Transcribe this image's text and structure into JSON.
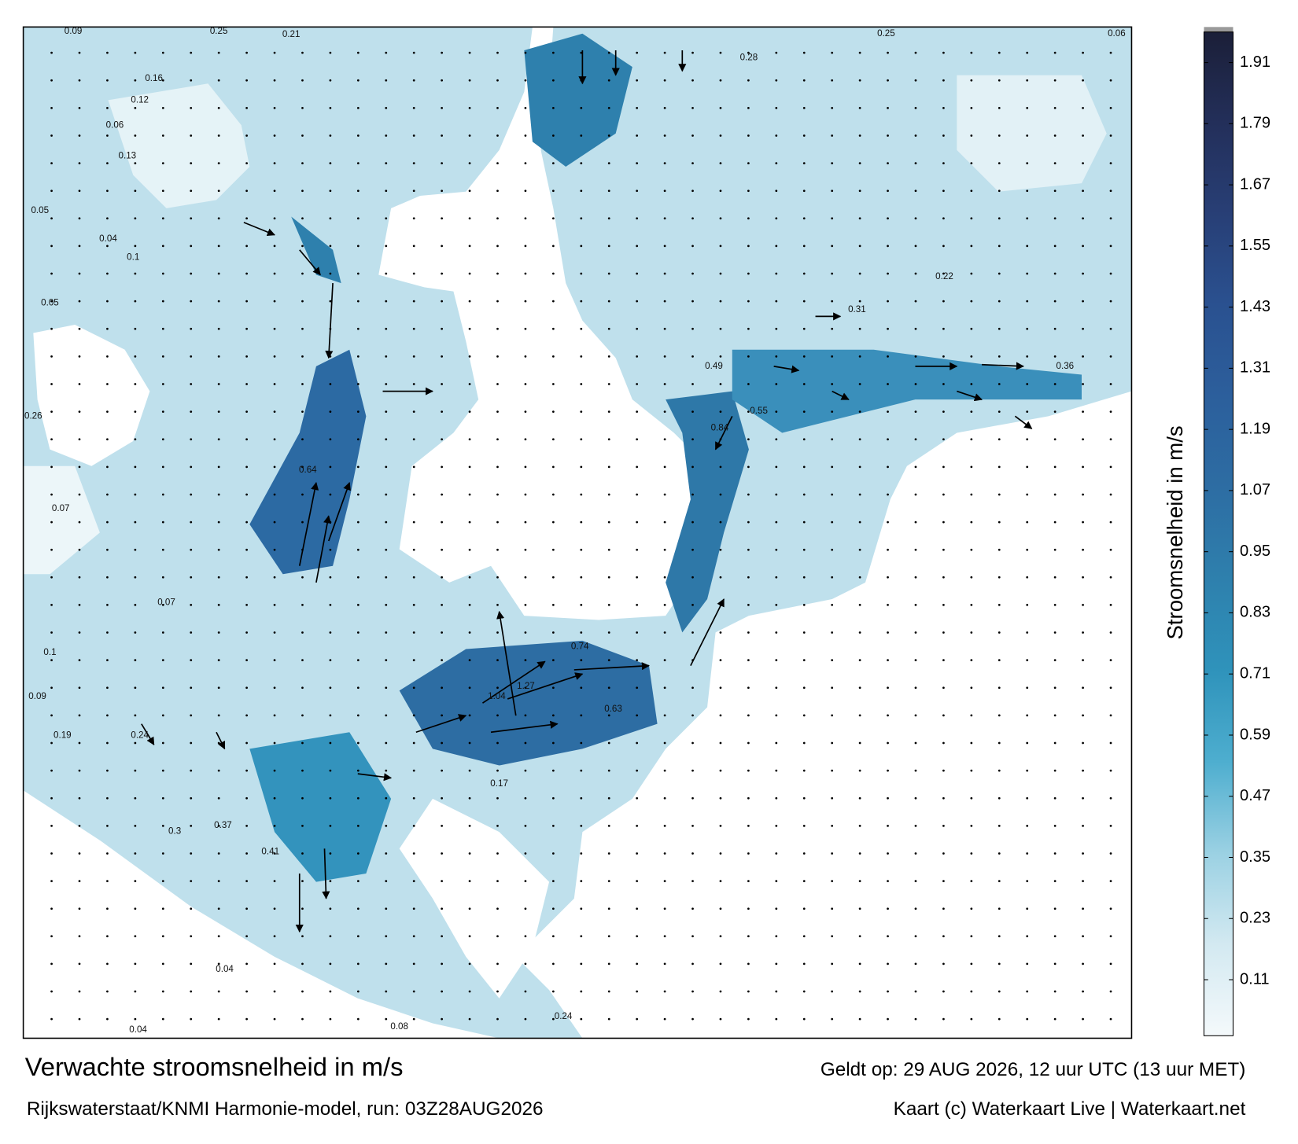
{
  "map": {
    "title": "Verwachte stroomsnelheid in m/s",
    "subtitle": "Rijkswaterstaat/KNMI Harmonie-model, run: 03Z28AUG2026",
    "valid_time": "Geldt op: 29 AUG 2026, 12 uur UTC (13 uur MET)",
    "credit": "Kaart (c) Waterkaart Live | Waterkaart.net",
    "colorbar": {
      "label": "Stroomsnelheid in m/s",
      "range": [
        0,
        1.97
      ],
      "ticks": [
        0.11,
        0.23,
        0.35,
        0.47,
        0.59,
        0.71,
        0.83,
        0.95,
        1.07,
        1.19,
        1.31,
        1.43,
        1.55,
        1.67,
        1.79,
        1.91
      ],
      "colors": [
        "#f4f9fb",
        "#d3e9f1",
        "#9bd1e3",
        "#4eaecf",
        "#2f93bb",
        "#2e80ad",
        "#2d6da3",
        "#2c5f9c",
        "#2a5190",
        "#283f76",
        "#232f5a",
        "#1b1f38"
      ]
    },
    "speed_labels": [
      0.09,
      0.25,
      0.21,
      0.16,
      0.12,
      0.06,
      0.13,
      0.05,
      0.04,
      0.1,
      0.05,
      0.26,
      0.07,
      0.07,
      0.1,
      0.09,
      0.19,
      0.24,
      0.3,
      0.37,
      0.41,
      0.04,
      0.04,
      0.08,
      0.24,
      0.28,
      0.25,
      0.06,
      0.22,
      0.31,
      0.36,
      0.17,
      0.64,
      0.84,
      1.04,
      1.27,
      0.74,
      0.63,
      0.49,
      0.55
    ]
  }
}
